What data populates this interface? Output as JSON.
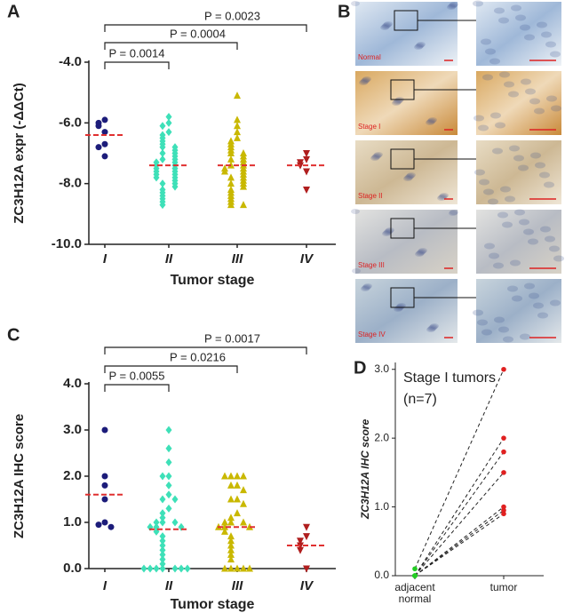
{
  "chart_data": [
    {
      "type": "dotplot",
      "panel_label": "A",
      "ylabel": "ZC3H12A expr (-ΔΔCt)",
      "xlabel": "Tumor stage",
      "ylim": [
        -10,
        -4
      ],
      "yticks": [
        {
          "value": -10,
          "label": "-10.0"
        },
        {
          "value": -8,
          "label": "-8.0"
        },
        {
          "value": -6,
          "label": "-6.0"
        },
        {
          "value": -4,
          "label": "-4.0"
        }
      ],
      "annotations": [
        "P = 0.0014",
        "P = 0.0004",
        "P = 0.0023"
      ],
      "line_color": "#e03030",
      "groups": [
        {
          "name": "I",
          "color": "#1c1c7a",
          "marker": "circle",
          "line": -6.4,
          "values": [
            -5.9,
            -6.0,
            -6.1,
            -6.3,
            -6.7,
            -6.8,
            -7.1
          ]
        },
        {
          "name": "II",
          "color": "#3ee0b8",
          "marker": "diamond",
          "line": -7.4,
          "values": [
            -5.8,
            -6.0,
            -6.1,
            -6.3,
            -6.4,
            -6.5,
            -6.6,
            -6.7,
            -6.8,
            -6.8,
            -6.9,
            -7.0,
            -7.0,
            -7.1,
            -7.2,
            -7.2,
            -7.3,
            -7.3,
            -7.4,
            -7.4,
            -7.5,
            -7.5,
            -7.6,
            -7.6,
            -7.7,
            -7.7,
            -7.8,
            -7.8,
            -7.9,
            -8.0,
            -8.0,
            -8.1,
            -8.2,
            -8.3,
            -8.4,
            -8.5,
            -8.6,
            -8.7
          ]
        },
        {
          "name": "III",
          "color": "#c9b800",
          "marker": "triangle-up",
          "line": -7.4,
          "values": [
            -5.1,
            -5.9,
            -6.1,
            -6.3,
            -6.5,
            -6.6,
            -6.7,
            -6.8,
            -6.9,
            -7.0,
            -7.0,
            -7.1,
            -7.2,
            -7.2,
            -7.3,
            -7.4,
            -7.4,
            -7.5,
            -7.5,
            -7.6,
            -7.6,
            -7.7,
            -7.8,
            -7.8,
            -7.9,
            -8.0,
            -8.0,
            -8.1,
            -8.2,
            -8.3,
            -8.4,
            -8.5,
            -8.6,
            -8.7,
            -8.7
          ]
        },
        {
          "name": "IV",
          "color": "#b01e1e",
          "marker": "triangle-down",
          "line": -7.4,
          "values": [
            -7.0,
            -7.2,
            -7.3,
            -7.4,
            -7.6,
            -8.2
          ]
        }
      ]
    },
    {
      "type": "dotplot",
      "panel_label": "C",
      "ylabel": "ZC3H12A IHC score",
      "xlabel": "Tumor stage",
      "ylim": [
        0,
        4
      ],
      "yticks": [
        {
          "value": 0,
          "label": "0.0"
        },
        {
          "value": 1,
          "label": "1.0"
        },
        {
          "value": 2,
          "label": "2.0"
        },
        {
          "value": 3,
          "label": "3.0"
        },
        {
          "value": 4,
          "label": "4.0"
        }
      ],
      "annotations": [
        "P = 0.0055",
        "P = 0.0216",
        "P = 0.0017"
      ],
      "line_color": "#e03030",
      "groups": [
        {
          "name": "I",
          "color": "#1c1c7a",
          "marker": "circle",
          "line": 1.6,
          "values": [
            3.0,
            2.0,
            1.8,
            1.5,
            1.0,
            0.95,
            0.9
          ]
        },
        {
          "name": "II",
          "color": "#3ee0b8",
          "marker": "diamond",
          "line": 0.85,
          "values": [
            3.0,
            2.6,
            2.3,
            2.0,
            2.0,
            1.8,
            1.6,
            1.5,
            1.5,
            1.3,
            1.2,
            1.1,
            1.0,
            1.0,
            1.0,
            0.9,
            0.9,
            0.9,
            0.8,
            0.7,
            0.6,
            0.5,
            0.4,
            0.3,
            0.2,
            0.1,
            0,
            0,
            0,
            0,
            0,
            0,
            0
          ]
        },
        {
          "name": "III",
          "color": "#c9b800",
          "marker": "triangle-up",
          "line": 0.9,
          "values": [
            2.0,
            2.0,
            2.0,
            2.0,
            1.8,
            1.8,
            1.7,
            1.5,
            1.5,
            1.4,
            1.2,
            1.1,
            1.0,
            1.0,
            1.0,
            0.9,
            0.9,
            0.9,
            0.8,
            0.7,
            0.6,
            0.5,
            0.4,
            0.3,
            0.2,
            0,
            0,
            0,
            0,
            0
          ]
        },
        {
          "name": "IV",
          "color": "#b01e1e",
          "marker": "triangle-down",
          "line": 0.5,
          "values": [
            0.9,
            0.7,
            0.6,
            0.5,
            0.4,
            0
          ]
        }
      ]
    },
    {
      "type": "paired",
      "panel_label": "D",
      "ylabel": "ZC3H12A IHC score",
      "annotation": [
        "Stage I tumors",
        "(n=7)"
      ],
      "categories": [
        "adjacent normal",
        "tumor"
      ],
      "marker_colors": [
        "#22cc22",
        "#e02020"
      ],
      "ylim": [
        0,
        3.1
      ],
      "yticks": [
        {
          "value": 0,
          "label": "0.0"
        },
        {
          "value": 1,
          "label": "1.0"
        },
        {
          "value": 2,
          "label": "2.0"
        },
        {
          "value": 3,
          "label": "3.0"
        }
      ],
      "series": [
        {
          "values": [
            0.1,
            3.0
          ]
        },
        {
          "values": [
            0,
            2.0
          ]
        },
        {
          "values": [
            0,
            1.8
          ]
        },
        {
          "values": [
            0,
            1.5
          ]
        },
        {
          "values": [
            0,
            1.0
          ]
        },
        {
          "values": [
            0,
            0.95
          ]
        },
        {
          "values": [
            0,
            0.9
          ]
        }
      ]
    }
  ],
  "image_panel": {
    "label": "B",
    "rows": [
      "Normal",
      "Stage I",
      "Stage II",
      "Stage III",
      "Stage IV"
    ]
  }
}
